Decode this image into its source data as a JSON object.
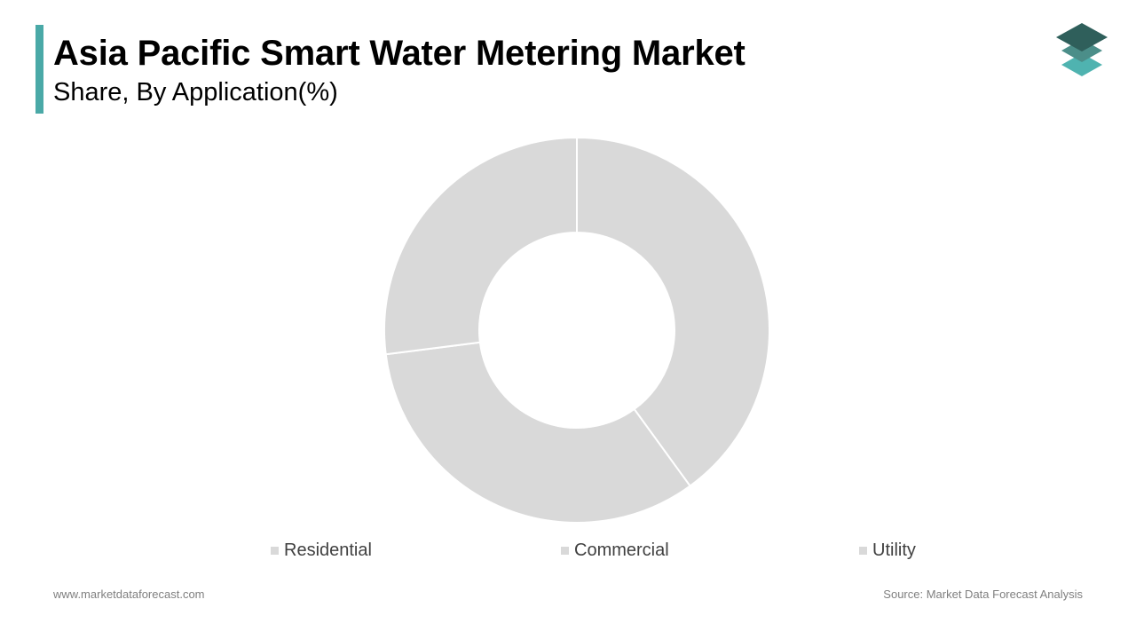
{
  "header": {
    "title": "Asia Pacific Smart Water Metering Market",
    "subtitle": "Share, By Application(%)"
  },
  "colors": {
    "accent": "#4aa9a7",
    "slice_fill": "#d9d9d9",
    "slice_border": "#ffffff",
    "logo_top": "#2f5f5b",
    "logo_middle": "#4b8e89",
    "logo_bottom": "#4fb3b0"
  },
  "logo": {
    "icon": "stacked-layers-icon"
  },
  "chart_data": {
    "type": "pie",
    "donut": true,
    "categories": [
      "Residential",
      "Commercial",
      "Utility"
    ],
    "values": [
      40,
      33,
      27
    ],
    "legend_position": "bottom"
  },
  "footer": {
    "website": "www.marketdataforecast.com",
    "source": "Source: Market Data Forecast Analysis"
  }
}
